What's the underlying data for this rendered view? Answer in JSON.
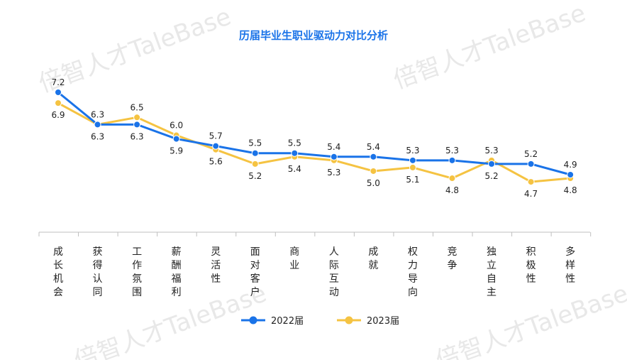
{
  "watermark": "倍智人才TaleBase",
  "chart_data": {
    "type": "line",
    "title": "历届毕业生职业驱动力对比分析",
    "categories": [
      "成长机会",
      "获得认同",
      "工作氛围",
      "薪酬福利",
      "灵活性",
      "面对客户",
      "商业",
      "人际互动",
      "成就",
      "权力导向",
      "竞争",
      "独立自主",
      "积极性",
      "多样性"
    ],
    "series": [
      {
        "name": "2022届",
        "color": "#1a73e8",
        "values": [
          7.2,
          6.3,
          6.3,
          5.9,
          5.7,
          5.5,
          5.5,
          5.4,
          5.4,
          5.3,
          5.3,
          5.2,
          5.2,
          4.9
        ]
      },
      {
        "name": "2023届",
        "color": "#f5c342",
        "values": [
          6.9,
          6.3,
          6.5,
          6.0,
          5.6,
          5.2,
          5.4,
          5.3,
          5.0,
          5.1,
          4.8,
          5.3,
          4.7,
          4.8
        ]
      }
    ],
    "legend_position": "bottom",
    "grid": false,
    "ylim": [
      3.0,
      7.6
    ]
  }
}
